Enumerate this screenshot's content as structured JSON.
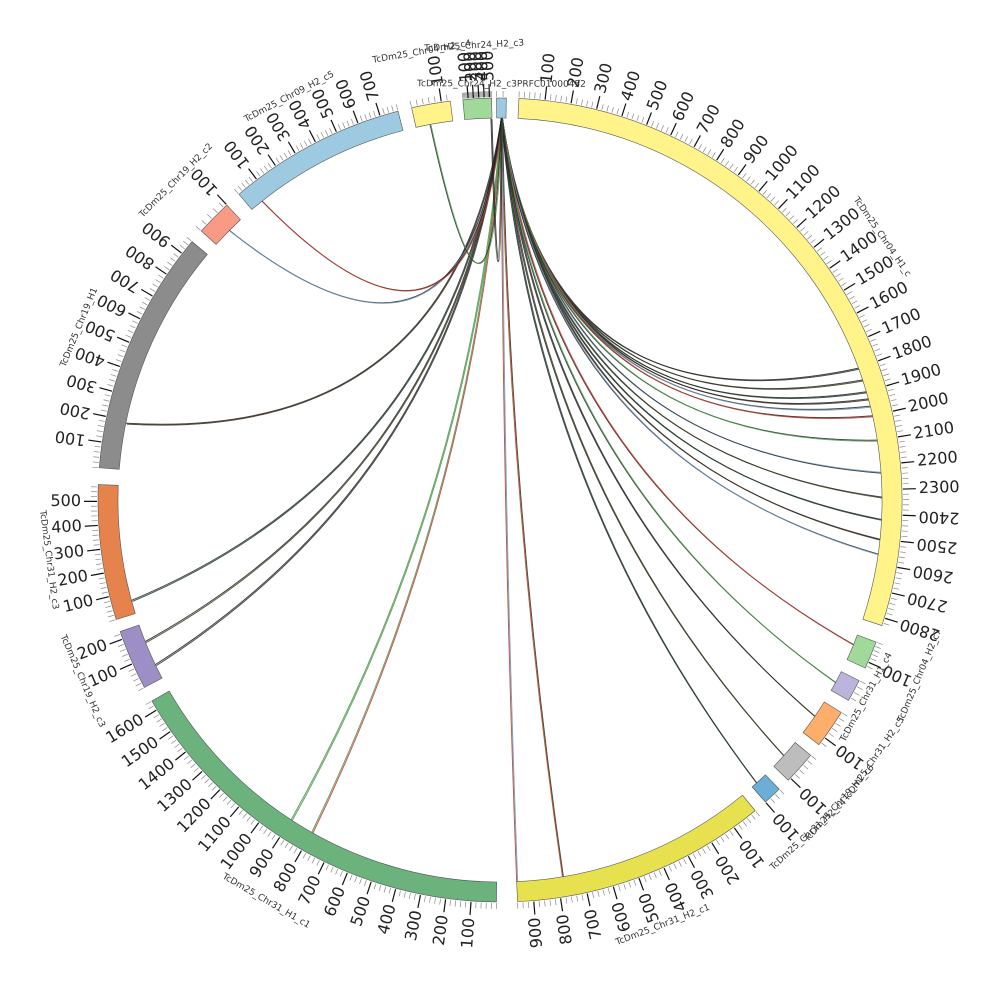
{
  "chart_data": {
    "type": "circos",
    "segments": [
      {
        "name": "TcDm25_Chr24_H2_c3PRFC01000452",
        "color": "#9ecae1",
        "ticks": []
      },
      {
        "name": "TcDm25_Chr04_H1_c",
        "color": "#fff38a",
        "ticks": [
          "100",
          "200",
          "300",
          "400",
          "500",
          "600",
          "700",
          "800",
          "900",
          "1000",
          "1100",
          "1200",
          "1300",
          "1400",
          "1500",
          "1600",
          "1700",
          "1800",
          "1900",
          "2000",
          "2100",
          "2200",
          "2300",
          "2400",
          "2500",
          "2600",
          "2700",
          "2800"
        ]
      },
      {
        "name": "TcDm25_Chr04_H2_c7",
        "color": "#a1d99b",
        "ticks": [
          "100"
        ]
      },
      {
        "name": "TcDm25_Chr31_H1_c4",
        "color": "#bcb4dc",
        "ticks": []
      },
      {
        "name": "TcDm25_Chr31_H2_c5",
        "color": "#fdae6b",
        "ticks": [
          "100"
        ]
      },
      {
        "name": "TcDm25_Chr19_H1_c6",
        "color": "#bdbdbd",
        "ticks": [
          "100"
        ]
      },
      {
        "name": "TcDm25_Chr31_H2_c4",
        "color": "#6baed6",
        "ticks": [
          "100"
        ]
      },
      {
        "name": "TcDm25_Chr31_H2_c1",
        "color": "#e7e14f",
        "ticks": [
          "100",
          "200",
          "300",
          "400",
          "500",
          "600",
          "700",
          "800",
          "900"
        ]
      },
      {
        "name": "TcDm25_Chr31_H1_c1",
        "color": "#6bb27c",
        "ticks": [
          "100",
          "200",
          "300",
          "400",
          "500",
          "600",
          "700",
          "800",
          "900",
          "1000",
          "1100",
          "1200",
          "1300",
          "1400",
          "1500",
          "1600"
        ]
      },
      {
        "name": "TcDm25_Chr19_H2_c3",
        "color": "#9e8ec6",
        "ticks": [
          "100",
          "200"
        ]
      },
      {
        "name": "TcDm25_Chr31_H2_c3",
        "color": "#e6834d",
        "ticks": [
          "100",
          "200",
          "300",
          "400",
          "500"
        ]
      },
      {
        "name": "TcDm25_Chr19_H1",
        "color": "#8c8c8c",
        "ticks": [
          "100",
          "200",
          "300",
          "400",
          "500",
          "600",
          "700",
          "800",
          "900"
        ]
      },
      {
        "name": "TcDm25_Chr19_H2_c2",
        "color": "#f99b84",
        "ticks": [
          "100"
        ]
      },
      {
        "name": "TcDm25_Chr09_H2_c5",
        "color": "#9ecae1",
        "ticks": [
          "100",
          "200",
          "300",
          "400",
          "500",
          "600",
          "700"
        ]
      },
      {
        "name": "TcDm25_Chr04_H2_c4",
        "color": "#fff38a",
        "ticks": [
          "100"
        ]
      },
      {
        "name": "TcDm25_Chr24_H2_c3",
        "color": "#a1d99b",
        "ticks": [
          "100",
          "200",
          "300",
          "400",
          "500"
        ]
      }
    ],
    "links": [
      {
        "from": "TcDm25_Chr24_H2_c3PRFC01000452",
        "to": "TcDm25_Chr04_H1_c",
        "to_pos": 1800
      },
      {
        "from": "TcDm25_Chr24_H2_c3PRFC01000452",
        "to": "TcDm25_Chr04_H1_c",
        "to_pos": 1850
      },
      {
        "from": "TcDm25_Chr24_H2_c3PRFC01000452",
        "to": "TcDm25_Chr04_H1_c",
        "to_pos": 1900
      },
      {
        "from": "TcDm25_Chr24_H2_c3PRFC01000452",
        "to": "TcDm25_Chr04_H1_c",
        "to_pos": 1930
      },
      {
        "from": "TcDm25_Chr24_H2_c3PRFC01000452",
        "to": "TcDm25_Chr04_H1_c",
        "to_pos": 1960
      },
      {
        "from": "TcDm25_Chr24_H2_c3PRFC01000452",
        "to": "TcDm25_Chr04_H1_c",
        "to_pos": 2000
      },
      {
        "from": "TcDm25_Chr24_H2_c3PRFC01000452",
        "to": "TcDm25_Chr04_H1_c",
        "to_pos": 2100
      },
      {
        "from": "TcDm25_Chr24_H2_c3PRFC01000452",
        "to": "TcDm25_Chr04_H1_c",
        "to_pos": 2230
      },
      {
        "from": "TcDm25_Chr24_H2_c3PRFC01000452",
        "to": "TcDm25_Chr04_H1_c",
        "to_pos": 2330
      },
      {
        "from": "TcDm25_Chr24_H2_c3PRFC01000452",
        "to": "TcDm25_Chr04_H1_c",
        "to_pos": 2420
      },
      {
        "from": "TcDm25_Chr24_H2_c3PRFC01000452",
        "to": "TcDm25_Chr04_H1_c",
        "to_pos": 2500
      },
      {
        "from": "TcDm25_Chr24_H2_c3PRFC01000452",
        "to": "TcDm25_Chr04_H1_c",
        "to_pos": 2560
      },
      {
        "from": "TcDm25_Chr24_H2_c3PRFC01000452",
        "to": "TcDm25_Chr04_H2_c7",
        "to_pos": 50
      },
      {
        "from": "TcDm25_Chr24_H2_c3PRFC01000452",
        "to": "TcDm25_Chr31_H1_c4",
        "to_pos": 40
      },
      {
        "from": "TcDm25_Chr24_H2_c3PRFC01000452",
        "to": "TcDm25_Chr31_H2_c5",
        "to_pos": 60
      },
      {
        "from": "TcDm25_Chr24_H2_c3PRFC01000452",
        "to": "TcDm25_Chr19_H1_c6",
        "to_pos": 60
      },
      {
        "from": "TcDm25_Chr24_H2_c3PRFC01000452",
        "to": "TcDm25_Chr31_H2_c4",
        "to_pos": 40
      },
      {
        "from": "TcDm25_Chr24_H2_c3PRFC01000452",
        "to": "TcDm25_Chr31_H2_c1",
        "to_pos": 780
      },
      {
        "from": "TcDm25_Chr24_H2_c3PRFC01000452",
        "to": "TcDm25_Chr31_H2_c1",
        "to_pos": 960
      },
      {
        "from": "TcDm25_Chr24_H2_c3PRFC01000452",
        "to": "TcDm25_Chr31_H1_c1",
        "to_pos": 800
      },
      {
        "from": "TcDm25_Chr24_H2_c3PRFC01000452",
        "to": "TcDm25_Chr31_H1_c1",
        "to_pos": 900
      },
      {
        "from": "TcDm25_Chr24_H2_c3PRFC01000452",
        "to": "TcDm25_Chr19_H2_c3",
        "to_pos": 60
      },
      {
        "from": "TcDm25_Chr24_H2_c3PRFC01000452",
        "to": "TcDm25_Chr19_H2_c3",
        "to_pos": 160
      },
      {
        "from": "TcDm25_Chr24_H2_c3PRFC01000452",
        "to": "TcDm25_Chr31_H2_c3",
        "to_pos": 60
      },
      {
        "from": "TcDm25_Chr24_H2_c3PRFC01000452",
        "to": "TcDm25_Chr19_H1",
        "to_pos": 190
      },
      {
        "from": "TcDm25_Chr24_H2_c3PRFC01000452",
        "to": "TcDm25_Chr19_H2_c2",
        "to_pos": 50
      },
      {
        "from": "TcDm25_Chr24_H2_c3PRFC01000452",
        "to": "TcDm25_Chr09_H2_c5",
        "to_pos": 60
      },
      {
        "from": "TcDm25_Chr24_H2_c3PRFC01000452",
        "to": "TcDm25_Chr04_H2_c4",
        "to_pos": 50
      },
      {
        "from": "TcDm25_Chr24_H2_c3PRFC01000452",
        "to": "TcDm25_Chr24_H2_c3",
        "to_pos": 520
      }
    ]
  }
}
